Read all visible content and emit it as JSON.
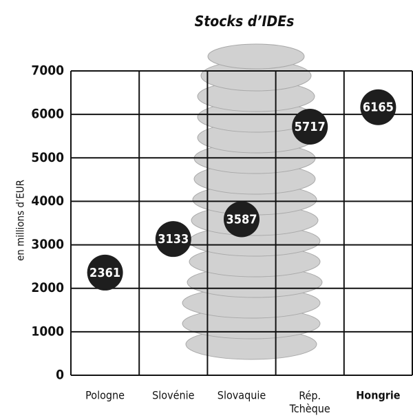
{
  "chart_data": {
    "type": "dot",
    "title": "Stocks d’IDEs",
    "y_label": "en millions d’EUR",
    "categories": [
      "Pologne",
      "Slovénie",
      "Slovaquie",
      "Rép. Tchèque",
      "Hongrie"
    ],
    "values": [
      2361,
      3133,
      3587,
      5717,
      6165
    ],
    "color": "#1e1e1e",
    "ylim": [
      0,
      7000
    ],
    "yticks": [
      0,
      1000,
      2000,
      3000,
      4000,
      5000,
      6000,
      7000
    ],
    "grid": true
  }
}
